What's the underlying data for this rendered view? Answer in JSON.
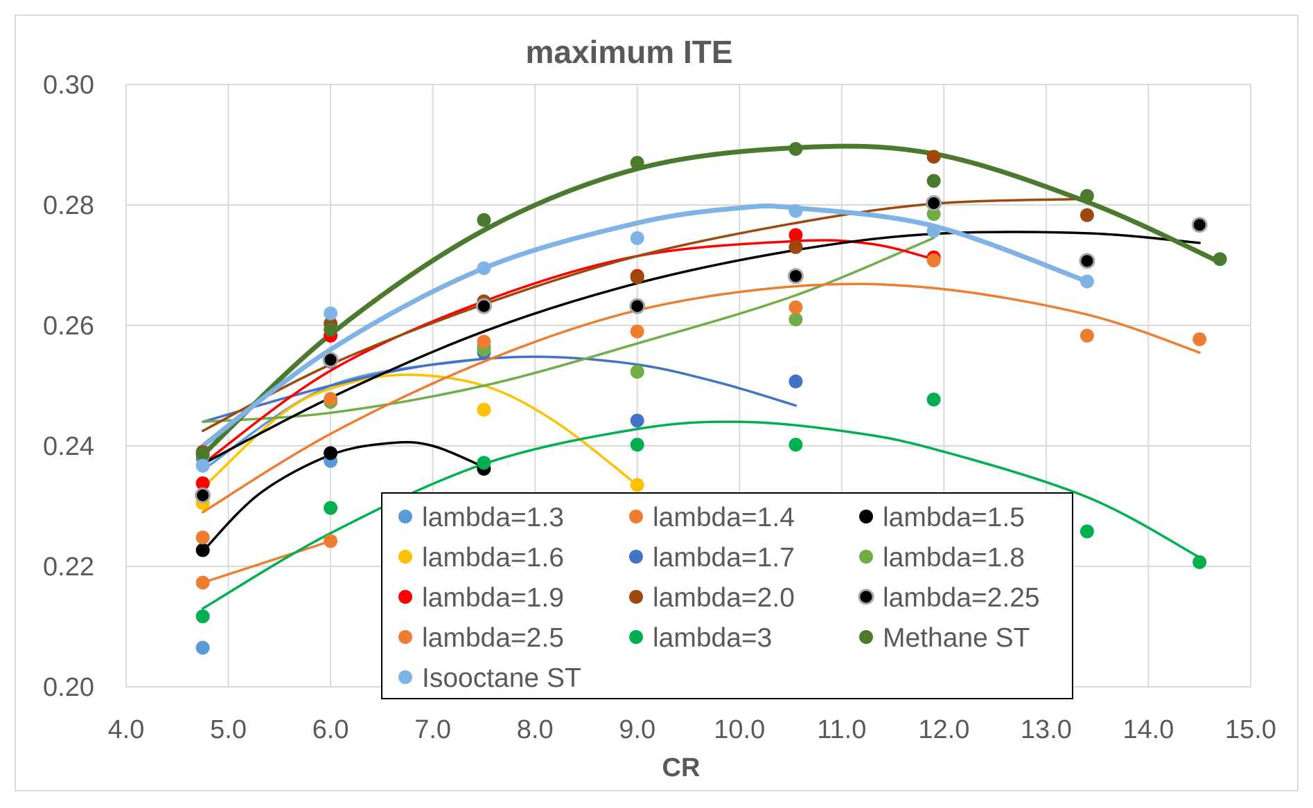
{
  "chart_data": {
    "type": "scatter",
    "title": "maximum ITE",
    "xlabel": "CR",
    "ylabel": "",
    "xlim": [
      4.0,
      15.0
    ],
    "ylim": [
      0.2,
      0.3
    ],
    "xticks": [
      "4.0",
      "5.0",
      "6.0",
      "7.0",
      "8.0",
      "9.0",
      "10.0",
      "11.0",
      "12.0",
      "13.0",
      "14.0",
      "15.0"
    ],
    "yticks": [
      "0.20",
      "0.22",
      "0.24",
      "0.26",
      "0.28",
      "0.30"
    ],
    "grid": true,
    "legend_position": "bottom-center",
    "series": [
      {
        "name": "lambda=1.3",
        "color": "#5B9BD5",
        "points": [
          [
            4.75,
            0.2065
          ],
          [
            6.0,
            0.2375
          ],
          [
            7.5,
            0.2565
          ]
        ],
        "trend": [
          [
            4.75,
            0.236
          ],
          [
            6.0,
            0.25
          ],
          [
            7.5,
            0.2545
          ]
        ]
      },
      {
        "name": "lambda=1.4",
        "color": "#ED7D31",
        "points": [
          [
            4.75,
            0.2173
          ],
          [
            6.0,
            0.2242
          ]
        ],
        "trend": [
          [
            4.75,
            0.2173
          ],
          [
            6.0,
            0.2242
          ]
        ]
      },
      {
        "name": "lambda=1.5",
        "color": "#000000",
        "points": [
          [
            4.75,
            0.2227
          ],
          [
            6.0,
            0.2388
          ],
          [
            7.5,
            0.2362
          ]
        ],
        "trend": [
          [
            4.75,
            0.2225
          ],
          [
            5.3,
            0.232
          ],
          [
            6.0,
            0.2385
          ],
          [
            6.6,
            0.2405
          ],
          [
            7.0,
            0.24
          ],
          [
            7.5,
            0.2365
          ]
        ]
      },
      {
        "name": "lambda=1.6",
        "color": "#FFC000",
        "points": [
          [
            4.75,
            0.2305
          ],
          [
            6.0,
            0.2475
          ],
          [
            7.5,
            0.246
          ],
          [
            9.0,
            0.2335
          ]
        ],
        "trend": [
          [
            4.75,
            0.233
          ],
          [
            5.5,
            0.245
          ],
          [
            6.0,
            0.2495
          ],
          [
            6.7,
            0.2518
          ],
          [
            7.5,
            0.25
          ],
          [
            8.2,
            0.244
          ],
          [
            9.0,
            0.2335
          ]
        ]
      },
      {
        "name": "lambda=1.7",
        "color": "#4472C4",
        "points": [
          [
            4.75,
            0.238
          ],
          [
            6.0,
            0.254
          ],
          [
            7.5,
            0.2555
          ],
          [
            9.0,
            0.2442
          ],
          [
            10.55,
            0.2507
          ]
        ],
        "trend": [
          [
            4.75,
            0.244
          ],
          [
            6.0,
            0.25
          ],
          [
            7.0,
            0.2535
          ],
          [
            8.0,
            0.2548
          ],
          [
            9.0,
            0.2535
          ],
          [
            9.8,
            0.2505
          ],
          [
            10.55,
            0.2467
          ]
        ]
      },
      {
        "name": "lambda=1.8",
        "color": "#70AD47",
        "points": [
          [
            4.75,
            0.2385
          ],
          [
            6.0,
            0.2473
          ],
          [
            7.5,
            0.256
          ],
          [
            9.0,
            0.2523
          ],
          [
            10.55,
            0.261
          ],
          [
            11.9,
            0.2785
          ]
        ],
        "trend": [
          [
            4.75,
            0.244
          ],
          [
            6.0,
            0.2455
          ],
          [
            7.5,
            0.25
          ],
          [
            9.0,
            0.257
          ],
          [
            10.55,
            0.265
          ],
          [
            11.9,
            0.2745
          ]
        ]
      },
      {
        "name": "lambda=1.9",
        "color": "#FF0000",
        "points": [
          [
            4.75,
            0.2338
          ],
          [
            6.0,
            0.2583
          ],
          [
            7.5,
            0.2638
          ],
          [
            9.0,
            0.2682
          ],
          [
            10.55,
            0.275
          ],
          [
            11.9,
            0.2713
          ]
        ],
        "trend": [
          [
            4.75,
            0.237
          ],
          [
            6.0,
            0.2525
          ],
          [
            7.5,
            0.264
          ],
          [
            9.0,
            0.2715
          ],
          [
            10.55,
            0.274
          ],
          [
            11.3,
            0.2735
          ],
          [
            11.9,
            0.271
          ]
        ]
      },
      {
        "name": "lambda=2.0",
        "color": "#9E480E",
        "points": [
          [
            4.75,
            0.239
          ],
          [
            6.0,
            0.2603
          ],
          [
            7.5,
            0.264
          ],
          [
            9.0,
            0.268
          ],
          [
            10.55,
            0.273
          ],
          [
            11.9,
            0.288
          ],
          [
            13.4,
            0.2783
          ]
        ],
        "trend": [
          [
            4.75,
            0.2425
          ],
          [
            6.0,
            0.2535
          ],
          [
            7.5,
            0.2635
          ],
          [
            9.0,
            0.2715
          ],
          [
            10.55,
            0.277
          ],
          [
            11.9,
            0.2802
          ],
          [
            13.4,
            0.281
          ]
        ]
      },
      {
        "name": "lambda=2.25",
        "color": "#000000",
        "points": [
          [
            4.75,
            0.2318
          ],
          [
            6.0,
            0.2543
          ],
          [
            7.5,
            0.2632
          ],
          [
            9.0,
            0.2632
          ],
          [
            10.55,
            0.2682
          ],
          [
            11.9,
            0.2803
          ],
          [
            13.4,
            0.2707
          ],
          [
            14.5,
            0.2767
          ]
        ],
        "trend": [
          [
            4.75,
            0.237
          ],
          [
            6.0,
            0.248
          ],
          [
            7.5,
            0.259
          ],
          [
            9.0,
            0.267
          ],
          [
            10.55,
            0.2725
          ],
          [
            11.9,
            0.2752
          ],
          [
            13.4,
            0.2753
          ],
          [
            14.5,
            0.2737
          ]
        ]
      },
      {
        "name": "lambda=2.5",
        "color": "#ED7D31",
        "points": [
          [
            4.75,
            0.2248
          ],
          [
            6.0,
            0.2478
          ],
          [
            7.5,
            0.2573
          ],
          [
            9.0,
            0.259
          ],
          [
            10.55,
            0.263
          ],
          [
            11.9,
            0.2708
          ],
          [
            13.4,
            0.2583
          ],
          [
            14.5,
            0.2577
          ]
        ],
        "trend": [
          [
            4.75,
            0.229
          ],
          [
            6.0,
            0.242
          ],
          [
            7.5,
            0.254
          ],
          [
            9.0,
            0.2625
          ],
          [
            10.55,
            0.2665
          ],
          [
            11.9,
            0.2662
          ],
          [
            13.4,
            0.2618
          ],
          [
            14.5,
            0.2555
          ]
        ]
      },
      {
        "name": "lambda=3",
        "color": "#00B050",
        "points": [
          [
            4.75,
            0.2117
          ],
          [
            6.0,
            0.2297
          ],
          [
            7.5,
            0.2372
          ],
          [
            9.0,
            0.2402
          ],
          [
            10.55,
            0.2402
          ],
          [
            11.9,
            0.2477
          ],
          [
            13.4,
            0.2258
          ],
          [
            14.5,
            0.2207
          ]
        ],
        "trend": [
          [
            4.75,
            0.213
          ],
          [
            6.0,
            0.2255
          ],
          [
            7.5,
            0.237
          ],
          [
            9.0,
            0.2428
          ],
          [
            10.0,
            0.244
          ],
          [
            11.0,
            0.2425
          ],
          [
            11.9,
            0.2395
          ],
          [
            13.4,
            0.2315
          ],
          [
            14.5,
            0.2215
          ]
        ]
      },
      {
        "name": "Methane ST",
        "color": "#4B7A2E",
        "points": [
          [
            4.75,
            0.2387
          ],
          [
            6.0,
            0.2593
          ],
          [
            7.5,
            0.2775
          ],
          [
            9.0,
            0.287
          ],
          [
            10.55,
            0.2893
          ],
          [
            11.9,
            0.284
          ],
          [
            13.4,
            0.2815
          ],
          [
            14.7,
            0.271
          ]
        ],
        "trend": [
          [
            4.75,
            0.2385
          ],
          [
            6.0,
            0.2585
          ],
          [
            7.5,
            0.2758
          ],
          [
            9.0,
            0.286
          ],
          [
            10.55,
            0.2895
          ],
          [
            11.9,
            0.2885
          ],
          [
            13.4,
            0.2805
          ],
          [
            14.7,
            0.2705
          ]
        ]
      },
      {
        "name": "Isooctane ST",
        "color": "#7FB2E5",
        "points": [
          [
            4.75,
            0.2367
          ],
          [
            6.0,
            0.262
          ],
          [
            7.5,
            0.2695
          ],
          [
            9.0,
            0.2745
          ],
          [
            10.55,
            0.279
          ],
          [
            11.9,
            0.2757
          ],
          [
            13.4,
            0.2673
          ]
        ],
        "trend": [
          [
            4.75,
            0.24
          ],
          [
            6.0,
            0.256
          ],
          [
            7.5,
            0.2695
          ],
          [
            9.0,
            0.277
          ],
          [
            10.0,
            0.2795
          ],
          [
            10.55,
            0.2795
          ],
          [
            11.9,
            0.2765
          ],
          [
            13.4,
            0.2673
          ]
        ]
      }
    ]
  }
}
